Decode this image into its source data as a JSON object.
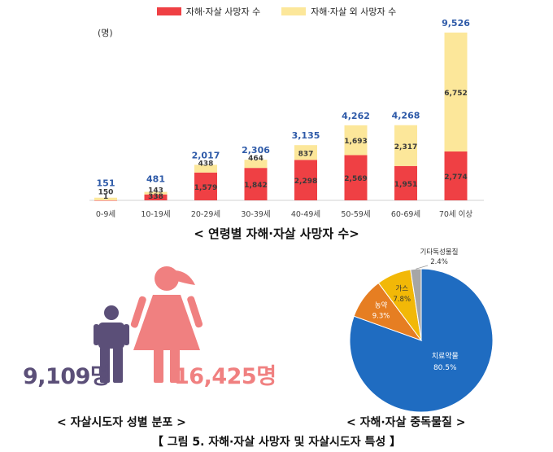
{
  "legend": {
    "suicide_label": "자해·자살 사망자 수",
    "other_label": "자해·자살 외 사망자 수"
  },
  "colors": {
    "suicide": "#ef4044",
    "other": "#fce79a",
    "total_label": "#2e5aa8",
    "male": "#5b4f78",
    "female": "#f08080",
    "pie_therapeutic": "#1f6cc1",
    "pie_pesticide": "#e67e22",
    "pie_gas": "#f2b807",
    "pie_other": "#a6a6a6"
  },
  "unit": "(명)",
  "chart_data": [
    {
      "type": "bar",
      "stacked": true,
      "categories": [
        "0-9세",
        "10-19세",
        "20-29세",
        "30-39세",
        "40-49세",
        "50-59세",
        "60-69세",
        "70세 이상"
      ],
      "series": [
        {
          "name": "자해·자살 사망자 수",
          "values": [
            1,
            338,
            1579,
            1842,
            2298,
            2569,
            1951,
            2774
          ],
          "labels": [
            "1",
            "338",
            "1,579",
            "1,842",
            "2,298",
            "2,569",
            "1,951",
            "2,774"
          ]
        },
        {
          "name": "자해·자살 외 사망자 수",
          "values": [
            150,
            143,
            438,
            464,
            837,
            1693,
            2317,
            6752
          ],
          "labels": [
            "150",
            "143",
            "438",
            "464",
            "837",
            "1,693",
            "2,317",
            "6,752"
          ]
        }
      ],
      "totals": [
        151,
        481,
        2017,
        2306,
        3135,
        4262,
        4268,
        9526
      ],
      "total_labels": [
        "151",
        "481",
        "2,017",
        "2,306",
        "3,135",
        "4,262",
        "4,268",
        "9,526"
      ],
      "ylim": [
        0,
        9526
      ],
      "legend_position": "top-center",
      "grid": false,
      "caption": "< 연령별 자해·자살 사망자 수>"
    },
    {
      "type": "pie",
      "slices": [
        {
          "label": "치료약물",
          "value": 80.5,
          "value_label": "80.5%"
        },
        {
          "label": "농약",
          "value": 9.3,
          "value_label": "9.3%"
        },
        {
          "label": "가스",
          "value": 7.8,
          "value_label": "7.8%"
        },
        {
          "label": "기타독성물질",
          "value": 2.4,
          "value_label": "2.4%"
        }
      ],
      "caption": "< 자해·자살 중독물질 >"
    }
  ],
  "gender": {
    "male_count": "9,109명",
    "female_count": "16,425명",
    "caption": "< 자살시도자 성별 분포 >"
  },
  "figure_caption": "【 그림 5. 자해·자살 사망자 및 자살시도자 특성 】"
}
